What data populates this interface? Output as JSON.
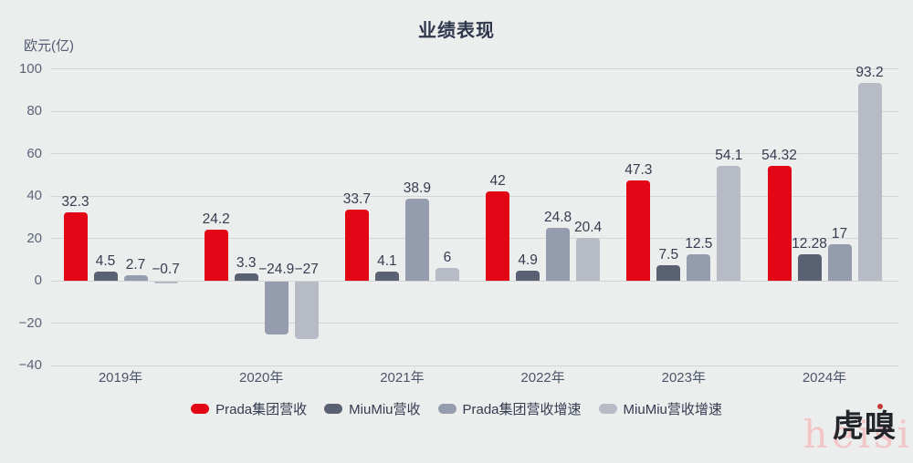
{
  "title": "业绩表现",
  "axis": {
    "unit_label": "欧元(亿)"
  },
  "watermarks": {
    "brand_logo": "虎嗅",
    "site_text": "heisi"
  },
  "chart_data": {
    "type": "bar",
    "title": "业绩表现",
    "xlabel": "",
    "ylabel": "欧元(亿)",
    "categories": [
      "2019年",
      "2020年",
      "2021年",
      "2022年",
      "2023年",
      "2024年"
    ],
    "series": [
      {
        "name": "Prada集团营收",
        "color": "#E30617",
        "values": [
          32.3,
          24.2,
          33.7,
          42,
          47.3,
          54.32
        ]
      },
      {
        "name": "MiuMiu营收",
        "color": "#596173",
        "values": [
          4.5,
          3.3,
          4.1,
          4.9,
          7.5,
          12.28
        ]
      },
      {
        "name": "Prada集团营收增速",
        "color": "#959CAD",
        "values": [
          2.7,
          -24.9,
          38.9,
          24.8,
          12.5,
          17
        ]
      },
      {
        "name": "MiuMiu营收增速",
        "color": "#B7BBC5",
        "values": [
          -0.7,
          -27,
          6,
          20.4,
          54.1,
          93.2
        ]
      }
    ],
    "ylim": [
      -40,
      100
    ],
    "yticks": [
      100,
      80,
      60,
      40,
      20,
      0,
      -20,
      -40
    ],
    "grid": true,
    "legend_position": "bottom",
    "value_labels": true
  }
}
